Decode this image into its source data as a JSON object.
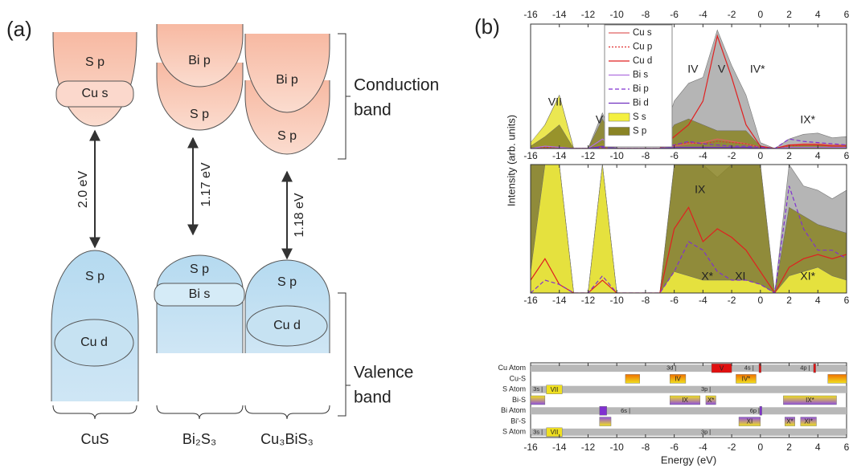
{
  "panel_a": {
    "label": "(a)",
    "columns": [
      {
        "name": "CuS",
        "gap": "2.0 eV",
        "conduction": [
          "S p",
          "Cu s"
        ],
        "valence": [
          "S p",
          "Cu d"
        ]
      },
      {
        "name": "Bi₂S₃",
        "gap": "1.17 eV",
        "conduction": [
          "Bi p",
          "S p"
        ],
        "valence": [
          "S p",
          "Bi s"
        ]
      },
      {
        "name": "Cu₃BiS₃",
        "gap": "1.18 eV",
        "conduction": [
          "Bi p",
          "S p"
        ],
        "valence": [
          "S p",
          "Cu d"
        ]
      }
    ],
    "conduction_band": [
      "Conduction",
      "band"
    ],
    "valence_band": [
      "Valence",
      "band"
    ]
  },
  "panel_b": {
    "label": "(b)",
    "ylabel": "Intensity (arb. units)"
  },
  "chart_data": [
    {
      "type": "line",
      "x": [
        -16,
        -15,
        -14,
        -13,
        -12,
        -11,
        -10,
        -9,
        -8,
        -7,
        -6,
        -5,
        -4,
        -3,
        -2,
        -1,
        0,
        1,
        2,
        3,
        4,
        5,
        6
      ],
      "xlim": [
        -16,
        6
      ],
      "xticks": [
        -16,
        -14,
        -12,
        -10,
        -8,
        -6,
        -4,
        -2,
        0,
        2,
        4,
        6
      ],
      "xticks_top": true,
      "ylim": [
        0,
        10.5
      ],
      "legend": "top",
      "total_color": "#b5b5b5",
      "total": [
        0.3,
        2,
        4.5,
        0,
        0,
        3,
        0,
        0,
        0,
        0,
        4,
        5.5,
        6,
        10,
        7,
        4.5,
        0.5,
        0,
        0.8,
        1.2,
        1.3,
        0.9,
        1
      ],
      "annotations": [
        "VII",
        "VI",
        "IV",
        "V",
        "IV*",
        "IX*"
      ],
      "series": [
        {
          "name": "Cu s",
          "color": "#e06060",
          "values": [
            0,
            0,
            0,
            0,
            0,
            0,
            0,
            0,
            0,
            0,
            0.2,
            0.4,
            0.5,
            0.8,
            0.6,
            0.4,
            0.1,
            0,
            0.3,
            0.4,
            0.4,
            0.3,
            0.3
          ]
        },
        {
          "name": "Cu p",
          "color": "#e03030",
          "dash": "dotted",
          "values": [
            0,
            0.1,
            0.1,
            0,
            0,
            0.1,
            0,
            0,
            0,
            0,
            0.3,
            0.5,
            0.4,
            0.6,
            0.5,
            0.4,
            0.1,
            0,
            0.2,
            0.3,
            0.3,
            0.2,
            0.2
          ]
        },
        {
          "name": "Cu d",
          "color": "#e02020",
          "values": [
            0,
            0,
            0,
            0,
            0,
            0,
            0,
            0,
            0,
            0,
            1,
            2,
            4,
            9.5,
            6,
            2,
            0.2,
            0,
            0.3,
            0.3,
            0.3,
            0.2,
            0.2
          ]
        },
        {
          "name": "Bi s",
          "color": "#b070e0",
          "values": [
            0,
            0.2,
            0.1,
            0,
            0,
            0.8,
            0,
            0,
            0,
            0,
            0.1,
            0.1,
            0.1,
            0.1,
            0.1,
            0.1,
            0,
            0,
            0.1,
            0.1,
            0.1,
            0.1,
            0.1
          ]
        },
        {
          "name": "Bi p",
          "color": "#8030d0",
          "dash": "dashed",
          "values": [
            0,
            0,
            0,
            0,
            0,
            0.1,
            0,
            0,
            0,
            0,
            0.3,
            0.6,
            0.4,
            0.3,
            0.2,
            0.2,
            0.1,
            0,
            0.8,
            0.6,
            0.5,
            0.4,
            0.3
          ]
        },
        {
          "name": "Bi d",
          "color": "#7030c0",
          "values": [
            0,
            0,
            0,
            0,
            0,
            0.2,
            0,
            0,
            0,
            0,
            0.1,
            0.1,
            0.1,
            0.1,
            0.1,
            0.1,
            0,
            0,
            0,
            0,
            0,
            0,
            0
          ]
        },
        {
          "name": "S s",
          "color": "#f4f040",
          "fill": true,
          "values": [
            0.5,
            2,
            4.5,
            0,
            0,
            0.5,
            0,
            0,
            0,
            0,
            0.1,
            0.1,
            0.1,
            0.1,
            0.1,
            0.1,
            0,
            0,
            0.1,
            0.1,
            0.1,
            0.1,
            0.1
          ]
        },
        {
          "name": "S p",
          "color": "#8a8425",
          "fill": true,
          "values": [
            0.2,
            1,
            2,
            0,
            0,
            2.5,
            0,
            0,
            0,
            0,
            2,
            2.5,
            2,
            1.5,
            1.5,
            1.5,
            0.2,
            0,
            0.3,
            0.4,
            0.4,
            0.3,
            0.3
          ]
        }
      ]
    },
    {
      "type": "line",
      "x": [
        -16,
        -15,
        -14,
        -13,
        -12,
        -11,
        -10,
        -9,
        -8,
        -7,
        -6,
        -5,
        -4,
        -3,
        -2,
        -1,
        0,
        1,
        2,
        3,
        4,
        5,
        6
      ],
      "xlim": [
        -16,
        6
      ],
      "xticks": [
        -16,
        -14,
        -12,
        -10,
        -8,
        -6,
        -4,
        -2,
        0,
        2,
        4,
        6
      ],
      "ylim": [
        0,
        3
      ],
      "total_color": "#b5b5b5",
      "total": [
        3,
        3,
        3,
        0,
        0,
        3,
        0,
        0,
        0,
        0,
        3,
        3,
        3,
        2.7,
        3,
        3,
        3,
        0,
        3,
        2.5,
        2.4,
        2.2,
        2.4
      ],
      "annotations": [
        "IX",
        "X*",
        "XI",
        "XI*"
      ],
      "series": [
        {
          "name": "S p",
          "color": "#8a8425",
          "fill": true,
          "values": [
            3,
            3,
            3,
            0,
            0,
            3,
            0,
            0,
            0,
            0,
            3,
            3,
            3,
            3,
            3,
            3,
            3,
            0,
            2,
            1.8,
            1.6,
            1.5,
            1.4
          ]
        },
        {
          "name": "S s",
          "color": "#f4f040",
          "fill": true,
          "values": [
            0.5,
            3,
            3,
            0,
            0,
            3,
            0,
            0,
            0,
            0,
            0.5,
            0.4,
            0.3,
            0.3,
            0.3,
            0.3,
            0.2,
            0,
            0.4,
            0.5,
            0.6,
            0.4,
            0.3
          ]
        },
        {
          "name": "Cu d",
          "color": "#e02020",
          "values": [
            0.3,
            0.8,
            0.2,
            0,
            0,
            0.3,
            0,
            0,
            0,
            0,
            1.5,
            2,
            1.2,
            1.5,
            1.3,
            1,
            0.5,
            0,
            0.6,
            0.8,
            0.9,
            0.8,
            0.9
          ]
        },
        {
          "name": "Bi p",
          "color": "#8030d0",
          "dash": "dashed",
          "values": [
            0,
            0.3,
            0.2,
            0,
            0,
            0.4,
            0,
            0,
            0,
            0,
            0.5,
            1.2,
            1,
            0.5,
            0.3,
            0.3,
            0.2,
            0,
            2.5,
            1.5,
            1,
            1,
            0.8
          ]
        }
      ]
    },
    {
      "type": "level-diagram",
      "xlim": [
        -16,
        6
      ],
      "xticks": [
        -16,
        -14,
        -12,
        -10,
        -8,
        -6,
        -4,
        -2,
        0,
        2,
        4,
        6
      ],
      "xlabel": "Energy (eV)",
      "rows": [
        {
          "name": "Cu Atom",
          "band": "#b8b8b8",
          "orbitals": [
            {
              "label": "3d",
              "x": -6.3
            },
            {
              "label": "4s",
              "x": -0.9
            },
            {
              "label": "4p",
              "x": 3.0
            }
          ],
          "levels": [
            {
              "label": "V",
              "x": [
                -3.4,
                -2.0
              ],
              "colors": [
                "#e01010",
                "#e01010"
              ]
            },
            {
              "x": [
                -0.1,
                0.05
              ],
              "colors": [
                "#e01010",
                "#e01010"
              ]
            },
            {
              "x": [
                3.7,
                3.85
              ],
              "colors": [
                "#e01010",
                "#e01010"
              ]
            }
          ]
        },
        {
          "name": "Cu-S",
          "levels": [
            {
              "x": [
                -9.4,
                -8.4
              ],
              "colors": [
                "#f07000",
                "#f0e020"
              ]
            },
            {
              "label": "IV",
              "x": [
                -6.3,
                -5.2
              ],
              "colors": [
                "#f07000",
                "#f0e020"
              ]
            },
            {
              "label": "IV*",
              "x": [
                -1.7,
                -0.3
              ],
              "colors": [
                "#f07000",
                "#f0e020"
              ]
            },
            {
              "x": [
                4.7,
                6.0
              ],
              "colors": [
                "#f07000",
                "#f0e020"
              ]
            }
          ]
        },
        {
          "name": "S Atom",
          "band": "#b8b8b8",
          "orbitals": [
            {
              "label": "3s",
              "x": -15.6
            },
            {
              "label": "3p",
              "x": -3.9
            }
          ],
          "levels": [
            {
              "label": "VII",
              "x": [
                -14.9,
                -13.8
              ],
              "colors": [
                "#f0e020",
                "#f0e020"
              ]
            }
          ]
        },
        {
          "name": "Bi-S",
          "levels": [
            {
              "x": [
                -16,
                -15
              ],
              "colors": [
                "#f0e020",
                "#9050e0"
              ]
            },
            {
              "label": "IX",
              "x": [
                -6.3,
                -4.2
              ],
              "colors": [
                "#f0e020",
                "#9050e0"
              ]
            },
            {
              "label": "X*",
              "x": [
                -3.8,
                -3.1
              ],
              "colors": [
                "#f0e020",
                "#9050e0"
              ]
            },
            {
              "label": "IX*",
              "x": [
                1.6,
                5.3
              ],
              "colors": [
                "#f0e020",
                "#9050e0"
              ]
            }
          ]
        },
        {
          "name": "Bi Atom",
          "band": "#b8b8b8",
          "orbitals": [
            {
              "label": "6s",
              "x": -9.5
            },
            {
              "label": "6p",
              "x": -0.5
            }
          ],
          "levels": [
            {
              "x": [
                -11.2,
                -10.7
              ],
              "colors": [
                "#8030d0",
                "#8030d0"
              ]
            },
            {
              "x": [
                -0.05,
                0.1
              ],
              "colors": [
                "#8030d0",
                "#8030d0"
              ]
            }
          ]
        },
        {
          "name": "Bi'-S",
          "levels": [
            {
              "x": [
                -11.2,
                -10.4
              ],
              "colors": [
                "#9050e0",
                "#f0e020"
              ]
            },
            {
              "label": "XI",
              "x": [
                -1.5,
                0
              ],
              "colors": [
                "#9050e0",
                "#f0e020"
              ]
            },
            {
              "label": "X*",
              "x": [
                1.7,
                2.4
              ],
              "colors": [
                "#9050e0",
                "#f0e020"
              ]
            },
            {
              "label": "XI*",
              "x": [
                2.8,
                3.9
              ],
              "colors": [
                "#9050e0",
                "#f0e020"
              ]
            }
          ]
        },
        {
          "name": "S Atom",
          "band": "#b8b8b8",
          "orbitals": [
            {
              "label": "3s",
              "x": -15.6
            },
            {
              "label": "3p",
              "x": -3.9
            }
          ],
          "levels": [
            {
              "label": "VII",
              "x": [
                -14.9,
                -13.8
              ],
              "colors": [
                "#f0e020",
                "#f0e020"
              ]
            }
          ]
        }
      ]
    }
  ]
}
